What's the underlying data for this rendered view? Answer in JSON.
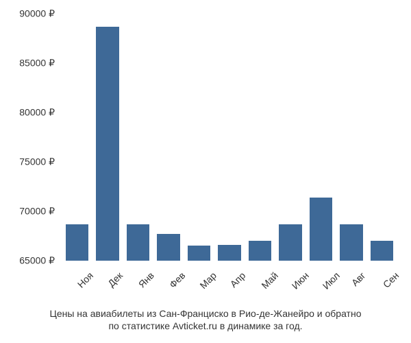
{
  "chart": {
    "type": "bar",
    "categories": [
      "Ноя",
      "Дек",
      "Янв",
      "Фев",
      "Мар",
      "Апр",
      "Май",
      "Июн",
      "Июл",
      "Авг",
      "Сен"
    ],
    "values": [
      68700,
      88700,
      68700,
      67700,
      66500,
      66600,
      67000,
      68700,
      71400,
      68700,
      67000
    ],
    "bar_color": "#3e6997",
    "background_color": "#ffffff",
    "ylim": [
      65000,
      90000
    ],
    "ytick_step": 5000,
    "ytick_labels": [
      "65000 ₽",
      "70000 ₽",
      "75000 ₽",
      "80000 ₽",
      "85000 ₽",
      "90000 ₽"
    ],
    "ytick_values": [
      65000,
      70000,
      75000,
      80000,
      85000,
      90000
    ],
    "bar_width_ratio": 0.75,
    "label_fontsize": 14,
    "label_color": "#333333",
    "x_label_rotation": -45
  },
  "caption": {
    "line1": "Цены на авиабилеты из Сан-Франциско в Рио-де-Жанейро и обратно",
    "line2": "по статистике Avticket.ru в динамике за год.",
    "fontsize": 14,
    "color": "#333333"
  }
}
